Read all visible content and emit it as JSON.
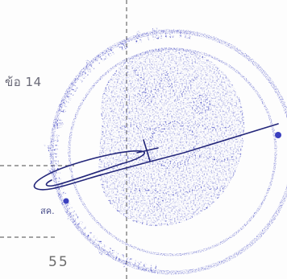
{
  "document": {
    "clause_label": "ข้อ 14",
    "period_label": "สค.",
    "page_number": "55"
  },
  "colors": {
    "ink_blue": "#3a3fbf",
    "ink_dark": "#23267a",
    "dash_gray": "#6b6b6b",
    "paper": "#fdfdfd"
  },
  "icons": {
    "seal": "official-seal-icon",
    "signature": "signature-mark"
  }
}
